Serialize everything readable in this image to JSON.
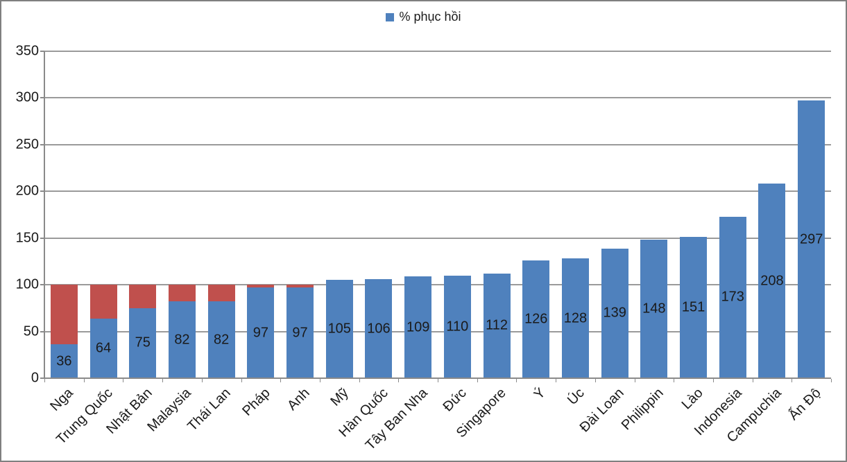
{
  "window": {
    "background": "#ffffff",
    "border_color": "#808080"
  },
  "legend": {
    "label": "% phục hồi",
    "marker_color": "#4F81BD",
    "position": "top-center"
  },
  "colors": {
    "bar_blue": "#4F81BD",
    "bar_red": "#C0504D",
    "gridline": "#9a9a9a",
    "axis": "#8a8a8a",
    "text": "#1a1a1a"
  },
  "chart_data": {
    "type": "bar",
    "stacked": true,
    "title": "",
    "xlabel": "",
    "ylabel": "",
    "grid": true,
    "legend_position": "top",
    "ylim": [
      0,
      350
    ],
    "ytick_step": 50,
    "yticks": [
      0,
      50,
      100,
      150,
      200,
      250,
      300,
      350
    ],
    "categories": [
      "Nga",
      "Trung Quốc",
      "Nhật Bản",
      "Malaysia",
      "Thái Lan",
      "Pháp",
      "Anh",
      "Mỹ",
      "Hàn Quốc",
      "Tây Ban Nha",
      "Đức",
      "Singapore",
      "Ý",
      "Úc",
      "Đài Loan",
      "Philippin",
      "Lào",
      "Indonesia",
      "Campuchia",
      "Ấn Độ"
    ],
    "series": [
      {
        "name": "% phục hồi",
        "color": "#4F81BD",
        "labels_visible": true,
        "values": [
          36,
          64,
          75,
          82,
          82,
          97,
          97,
          105,
          106,
          109,
          110,
          112,
          126,
          128,
          139,
          148,
          151,
          173,
          208,
          297
        ]
      },
      {
        "name": "",
        "color": "#C0504D",
        "labels_visible": false,
        "values": [
          64,
          36,
          25,
          18,
          18,
          3,
          3,
          0,
          0,
          0,
          0,
          0,
          0,
          0,
          0,
          0,
          0,
          0,
          0,
          0
        ]
      }
    ]
  }
}
